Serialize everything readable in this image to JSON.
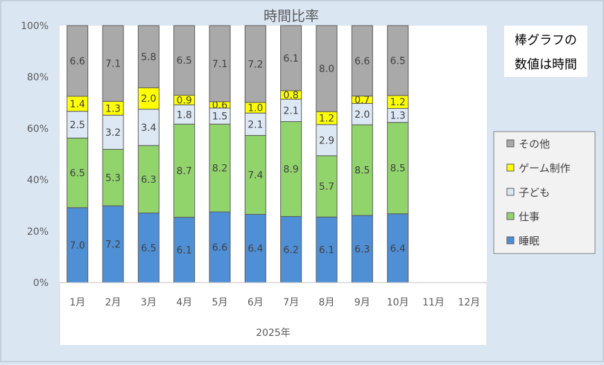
{
  "chart_data": {
    "type": "bar",
    "stacked": "percent",
    "title": "時間比率",
    "note_lines": [
      "棒グラフの",
      "数値は時間"
    ],
    "group_label": "2025年",
    "categories": [
      "1月",
      "2月",
      "3月",
      "4月",
      "5月",
      "6月",
      "7月",
      "8月",
      "9月",
      "10月",
      "11月",
      "12月"
    ],
    "y_ticks": [
      "0%",
      "20%",
      "40%",
      "60%",
      "80%",
      "100%"
    ],
    "ylim": [
      0,
      100
    ],
    "grid": false,
    "legend_position": "right",
    "series": [
      {
        "name": "睡眠",
        "color": "#4f8fd6",
        "values": [
          7.0,
          7.2,
          6.5,
          6.1,
          6.6,
          6.4,
          6.2,
          6.1,
          6.3,
          6.4,
          null,
          null
        ]
      },
      {
        "name": "仕事",
        "color": "#92d46c",
        "values": [
          6.5,
          5.3,
          6.3,
          8.7,
          8.2,
          7.4,
          8.9,
          5.7,
          8.5,
          8.5,
          null,
          null
        ]
      },
      {
        "name": "子ども",
        "color": "#dde8f5",
        "values": [
          2.5,
          3.2,
          3.4,
          1.8,
          1.5,
          2.1,
          2.1,
          2.9,
          2.0,
          1.3,
          null,
          null
        ]
      },
      {
        "name": "ゲーム制作",
        "color": "#ffff00",
        "values": [
          1.4,
          1.3,
          2.0,
          0.9,
          0.6,
          1.0,
          0.8,
          1.2,
          0.7,
          1.2,
          null,
          null
        ]
      },
      {
        "name": "その他",
        "color": "#a9a9a9",
        "values": [
          6.6,
          7.1,
          5.8,
          6.5,
          7.1,
          7.2,
          6.1,
          8.0,
          6.6,
          6.5,
          null,
          null
        ]
      }
    ]
  }
}
